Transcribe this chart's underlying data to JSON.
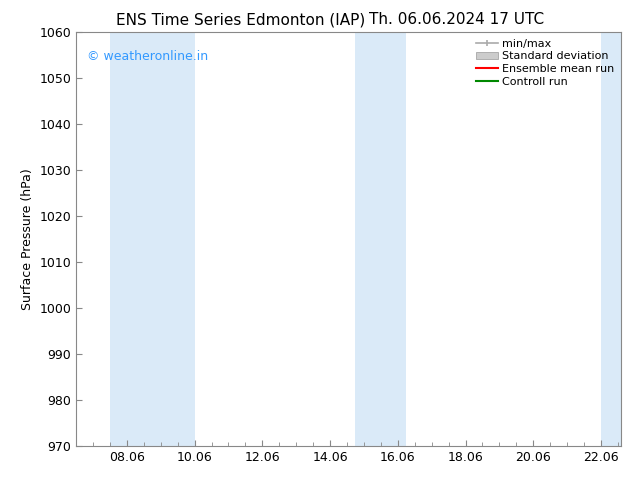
{
  "title_left": "ENS Time Series Edmonton (IAP)",
  "title_right": "Th. 06.06.2024 17 UTC",
  "ylabel": "Surface Pressure (hPa)",
  "ylim": [
    970,
    1060
  ],
  "yticks": [
    970,
    980,
    990,
    1000,
    1010,
    1020,
    1030,
    1040,
    1050,
    1060
  ],
  "xlim_start": 6.5,
  "xlim_end": 22.6,
  "xtick_labels": [
    "08.06",
    "10.06",
    "12.06",
    "14.06",
    "16.06",
    "18.06",
    "20.06",
    "22.06"
  ],
  "xtick_positions": [
    8.0,
    10.0,
    12.0,
    14.0,
    16.0,
    18.0,
    20.0,
    22.0
  ],
  "bg_color": "#ffffff",
  "plot_bg_color": "#ffffff",
  "shaded_bands": [
    {
      "x_start": 7.5,
      "x_end": 10.0,
      "color": "#daeaf8"
    },
    {
      "x_start": 14.75,
      "x_end": 16.25,
      "color": "#daeaf8"
    },
    {
      "x_start": 22.0,
      "x_end": 22.6,
      "color": "#daeaf8"
    }
  ],
  "watermark_text": "© weatheronline.in",
  "watermark_color": "#3399ff",
  "legend_entries": [
    {
      "label": "min/max",
      "color": "#aaaaaa",
      "style": "errorbar"
    },
    {
      "label": "Standard deviation",
      "color": "#cccccc",
      "style": "box"
    },
    {
      "label": "Ensemble mean run",
      "color": "#ff0000",
      "style": "line"
    },
    {
      "label": "Controll run",
      "color": "#008800",
      "style": "line"
    }
  ],
  "title_fontsize": 11,
  "axis_fontsize": 9,
  "tick_fontsize": 9,
  "watermark_fontsize": 9,
  "legend_fontsize": 8
}
